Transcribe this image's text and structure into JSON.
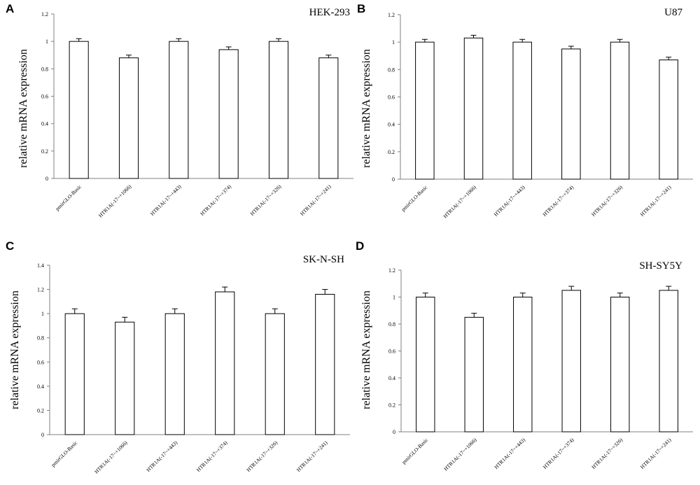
{
  "figure": {
    "panels": [
      {
        "letter": "A"
      },
      {
        "letter": "B"
      },
      {
        "letter": "C"
      },
      {
        "letter": "D"
      }
    ]
  },
  "chart_data": [
    {
      "type": "bar",
      "title": "HEK-293",
      "ylabel": "relative mRNA expression",
      "xlabel": "",
      "ylim": [
        0,
        1.2
      ],
      "yticks": [
        "0",
        "0.2",
        "0.4",
        "0.6",
        "0.8",
        "1",
        "1.2"
      ],
      "categories": [
        "pmirGLO-Basic",
        "HTR1A(-17~+1066)",
        "HTR1A(-17~+443)",
        "HTR1A(-17~+374)",
        "HTR1A(-17~+326)",
        "HTR1A(-17~+241)"
      ],
      "values": [
        1.0,
        0.88,
        1.0,
        0.94,
        1.0,
        0.88
      ],
      "errors": [
        0.02,
        0.02,
        0.02,
        0.02,
        0.02,
        0.02
      ]
    },
    {
      "type": "bar",
      "title": "U87",
      "ylabel": "relative mRNA expression",
      "xlabel": "",
      "ylim": [
        0,
        1.2
      ],
      "yticks": [
        "0",
        "0.2",
        "0.4",
        "0.6",
        "0.8",
        "1",
        "1.2"
      ],
      "categories": [
        "pmirGLO-Basic",
        "HTR1A(-17~+1066)",
        "HTR1A(-17~+443)",
        "HTR1A(-17~+374)",
        "HTR1A(-17~+326)",
        "HTR1A(-17~+241)"
      ],
      "values": [
        1.0,
        1.03,
        1.0,
        0.95,
        1.0,
        0.87
      ],
      "errors": [
        0.02,
        0.02,
        0.02,
        0.02,
        0.02,
        0.02
      ]
    },
    {
      "type": "bar",
      "title": "SK-N-SH",
      "ylabel": "relative mRNA expression",
      "xlabel": "",
      "ylim": [
        0,
        1.4
      ],
      "yticks": [
        "0",
        "0.2",
        "0.4",
        "0.6",
        "0.8",
        "1",
        "1.2",
        "1.4"
      ],
      "categories": [
        "pmirGLO-Basic",
        "HTR1A(-17~+1066)",
        "HTR1A(-17~+443)",
        "HTR1A(-17~+374)",
        "HTR1A(-17~+326)",
        "HTR1A(-17~+241)"
      ],
      "values": [
        1.0,
        0.93,
        1.0,
        1.18,
        1.0,
        1.16
      ],
      "errors": [
        0.04,
        0.04,
        0.04,
        0.04,
        0.04,
        0.04
      ]
    },
    {
      "type": "bar",
      "title": "SH-SY5Y",
      "ylabel": "relative mRNA expression",
      "xlabel": "",
      "ylim": [
        0,
        1.2
      ],
      "yticks": [
        "0",
        "0.2",
        "0.4",
        "0.6",
        "0.8",
        "1",
        "1.2"
      ],
      "categories": [
        "pmirGLO-Basic",
        "HTR1A(-17~+1066)",
        "HTR1A(-17~+443)",
        "HTR1A(-17~+374)",
        "HTR1A(-17~+326)",
        "HTR1A(-17~+241)"
      ],
      "values": [
        1.0,
        0.85,
        1.0,
        1.05,
        1.0,
        1.05
      ],
      "errors": [
        0.03,
        0.03,
        0.03,
        0.03,
        0.03,
        0.03
      ]
    }
  ]
}
